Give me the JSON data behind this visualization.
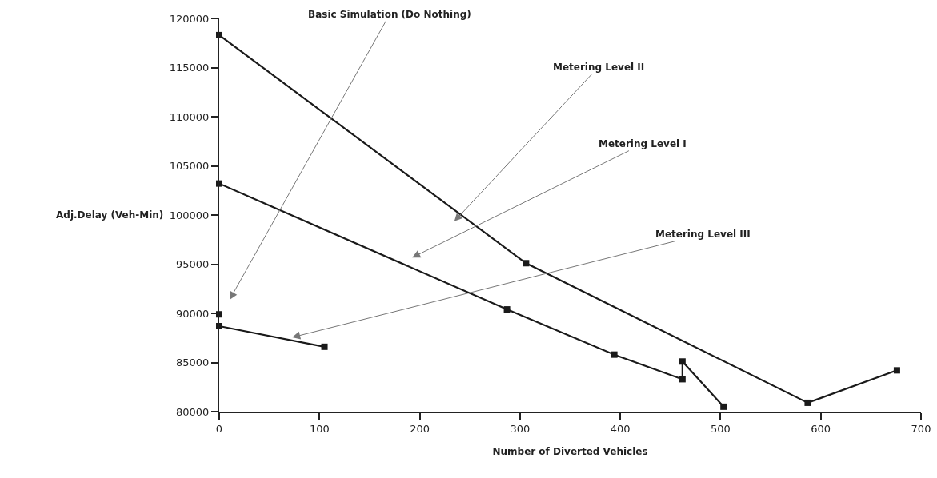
{
  "chart_data": {
    "type": "line",
    "xlabel": "Number of Diverted Vehicles",
    "ylabel": "Adj.Delay (Veh-Min)",
    "xlim": [
      0,
      700
    ],
    "xticks": [
      0,
      100,
      200,
      300,
      400,
      500,
      600,
      700
    ],
    "ylim": [
      80000,
      120000
    ],
    "yticks": [
      80000,
      85000,
      90000,
      95000,
      100000,
      105000,
      110000,
      115000,
      120000
    ],
    "grid": false,
    "marker": "square",
    "line_style": "solid",
    "series": [
      {
        "color": "#1a1a1a",
        "x": [
          0
        ],
        "values": [
          89900
        ]
      },
      {
        "color": "#1a1a1a",
        "x": [
          0,
          287,
          394,
          462,
          462,
          503
        ],
        "values": [
          103200,
          90400,
          85800,
          83300,
          85100,
          80500
        ]
      },
      {
        "color": "#1a1a1a",
        "x": [
          0,
          306,
          587,
          676
        ],
        "values": [
          118300,
          95100,
          80900,
          84200
        ]
      },
      {
        "color": "#1a1a1a",
        "x": [
          0,
          105
        ],
        "values": [
          88700,
          86600
        ]
      }
    ],
    "annotations": [
      "Basic Simulation (Do Nothing)",
      "Metering Level II",
      "Metering Level I",
      "Metering Level III"
    ]
  }
}
